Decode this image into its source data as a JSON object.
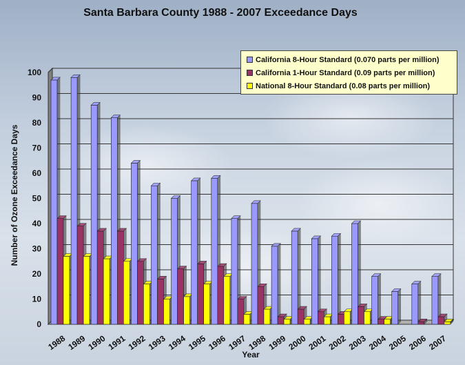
{
  "chart_data": {
    "type": "bar",
    "title": "Santa Barbara County 1988 - 2007 Exceedance Days",
    "xlabel": "Year",
    "ylabel": "Number of Ozone Exceedance Days",
    "ylim": [
      0,
      100
    ],
    "yticks": [
      0,
      10,
      20,
      30,
      40,
      50,
      60,
      70,
      80,
      90,
      100
    ],
    "categories": [
      "1988",
      "1989",
      "1990",
      "1991",
      "1992",
      "1993",
      "1994",
      "1995",
      "1996",
      "1997",
      "1998",
      "1999",
      "2000",
      "2001",
      "2002",
      "2003",
      "2004",
      "2005",
      "2006",
      "2007"
    ],
    "series": [
      {
        "name": "California 8-Hour  Standard (0.070  parts  per million)",
        "color": "#9999ff",
        "values": [
          97,
          98,
          87,
          82,
          64,
          55,
          50,
          57,
          58,
          42,
          48,
          31,
          37,
          34,
          35,
          40,
          19,
          13,
          16,
          19
        ]
      },
      {
        "name": "California 1-Hour  Standard (0.09 parts per million)",
        "color": "#993366",
        "values": [
          42,
          39,
          37,
          37,
          25,
          18,
          22,
          24,
          23,
          10,
          15,
          3,
          6,
          5,
          4,
          7,
          2,
          0,
          1,
          3
        ]
      },
      {
        "name": "National 8-Hour  Standard (0.08 parts per million)",
        "color": "#ffff00",
        "values": [
          27,
          27,
          26,
          25,
          16,
          10,
          11,
          16,
          19,
          4,
          6,
          2,
          2,
          3,
          5,
          5,
          2,
          0,
          0,
          1
        ]
      }
    ],
    "grid": true,
    "legend_position": "top-right"
  }
}
